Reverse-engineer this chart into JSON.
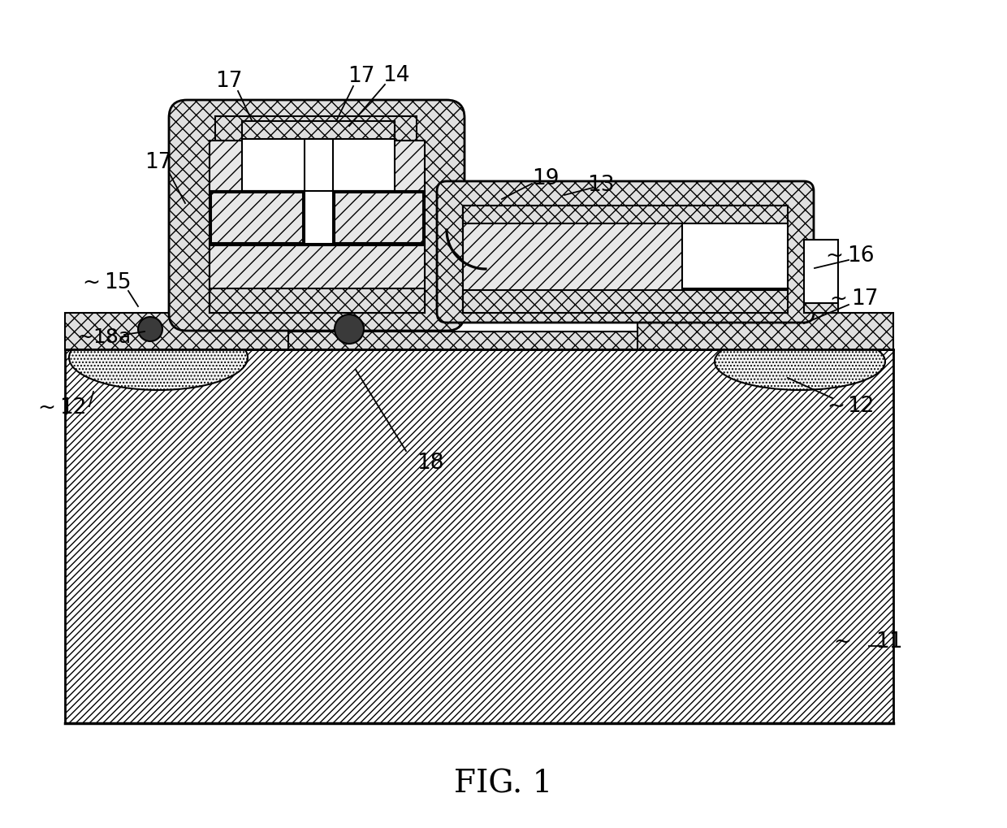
{
  "bg_color": "#ffffff",
  "fig_caption": "FIG. 1",
  "substrate_fc": "#f0f0f0",
  "crosshatch_fc": "#e0e0e0",
  "diag_fc": "#e8e8e8",
  "dot_fc": "#f5f5f5",
  "lw_main": 2.0,
  "lw_thin": 1.5,
  "label_fs": 19,
  "caption_fs": 28
}
